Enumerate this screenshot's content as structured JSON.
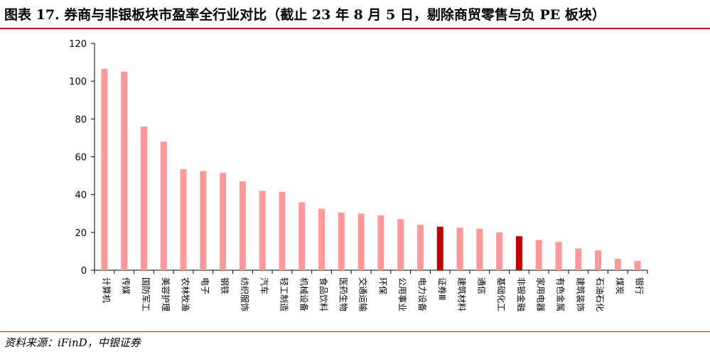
{
  "header": {
    "title": "图表 17. 券商与非银板块市盈率全行业对比（截止 23 年 8 月 5 日，剔除商贸零售与负 PE 板块）"
  },
  "footer": {
    "source": "资料来源：iFinD，中银证券"
  },
  "colors": {
    "normal_bar": "#ff9999",
    "highlight_bar": "#c00000",
    "rule": "#c01818"
  },
  "chart_data": {
    "type": "bar",
    "title": "",
    "xlabel": "",
    "ylabel": "",
    "ylim": [
      0,
      120
    ],
    "yticks": [
      0,
      20,
      40,
      60,
      80,
      100,
      120
    ],
    "grid": false,
    "legend": "none",
    "categories": [
      "计算机",
      "传媒",
      "国防军工",
      "美容护理",
      "农林牧渔",
      "电子",
      "钢铁",
      "纺织服饰",
      "汽车",
      "轻工制造",
      "机械设备",
      "食品饮料",
      "医药生物",
      "交通运输",
      "环保",
      "公用事业",
      "电力设备",
      "证券Ⅲ",
      "建筑材料",
      "通信",
      "基础化工",
      "非银金融",
      "家用电器",
      "有色金属",
      "建筑装饰",
      "石油石化",
      "煤炭",
      "银行"
    ],
    "values": [
      106.5,
      105,
      76,
      68,
      53.5,
      52.5,
      51.5,
      47,
      42,
      41.5,
      36,
      32.5,
      30.5,
      30,
      29,
      27,
      24,
      23,
      22.5,
      22,
      20,
      18,
      16,
      15,
      11.5,
      10.5,
      6,
      5
    ],
    "highlight": [
      "证券Ⅲ",
      "非银金融"
    ]
  }
}
